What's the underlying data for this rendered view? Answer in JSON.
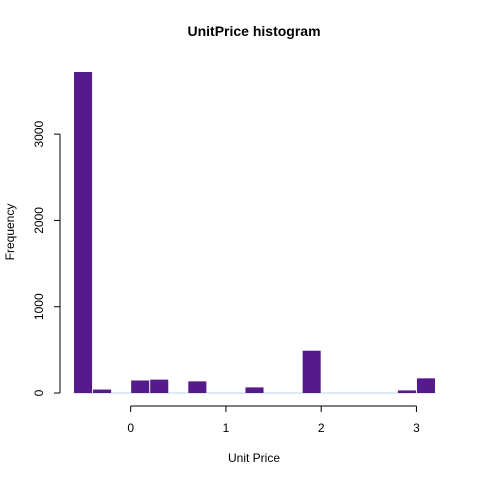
{
  "chart_data": {
    "type": "bar",
    "title": "UnitPrice histogram",
    "xlabel": "Unit Price",
    "ylabel": "Frequency",
    "bin_width": 0.2,
    "bins": [
      {
        "start": -0.6,
        "end": -0.4,
        "count": 3720
      },
      {
        "start": -0.4,
        "end": -0.2,
        "count": 40
      },
      {
        "start": -0.2,
        "end": 0.0,
        "count": 0
      },
      {
        "start": 0.0,
        "end": 0.2,
        "count": 145
      },
      {
        "start": 0.2,
        "end": 0.4,
        "count": 155
      },
      {
        "start": 0.4,
        "end": 0.6,
        "count": 0
      },
      {
        "start": 0.6,
        "end": 0.8,
        "count": 135
      },
      {
        "start": 0.8,
        "end": 1.0,
        "count": 0
      },
      {
        "start": 1.0,
        "end": 1.2,
        "count": 0
      },
      {
        "start": 1.2,
        "end": 1.4,
        "count": 65
      },
      {
        "start": 1.4,
        "end": 1.6,
        "count": 0
      },
      {
        "start": 1.6,
        "end": 1.8,
        "count": 0
      },
      {
        "start": 1.8,
        "end": 2.0,
        "count": 490
      },
      {
        "start": 2.0,
        "end": 2.2,
        "count": 0
      },
      {
        "start": 2.2,
        "end": 2.4,
        "count": 0
      },
      {
        "start": 2.4,
        "end": 2.6,
        "count": 0
      },
      {
        "start": 2.6,
        "end": 2.8,
        "count": 0
      },
      {
        "start": 2.8,
        "end": 3.0,
        "count": 30
      },
      {
        "start": 3.0,
        "end": 3.2,
        "count": 170
      }
    ],
    "x_ticks": [
      0,
      1,
      2,
      3
    ],
    "y_ticks": [
      0,
      1000,
      2000,
      3000
    ],
    "xlim": [
      -0.6,
      3.2
    ],
    "ylim": [
      0,
      3720
    ],
    "grid": false,
    "colors": {
      "bar": "#551a8b",
      "baseline": "#cfe3ef"
    }
  }
}
